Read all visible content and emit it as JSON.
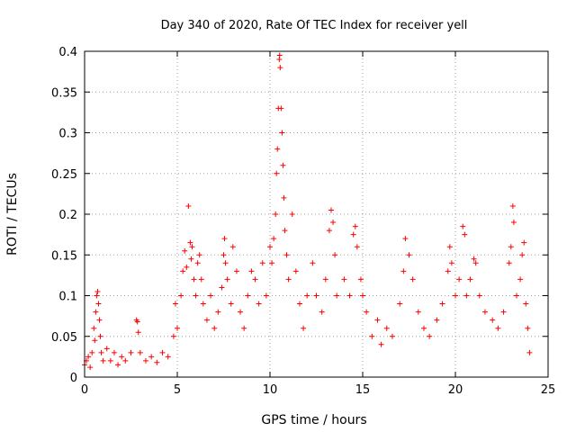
{
  "chart_data": {
    "type": "scatter",
    "title": "Day 340 of 2020, Rate Of TEC Index for receiver yell",
    "xlabel": "GPS time / hours",
    "ylabel": "ROTI / TECUs",
    "xlim": [
      0,
      25
    ],
    "ylim": [
      0,
      0.4
    ],
    "xticks": [
      0,
      5,
      10,
      15,
      20,
      25
    ],
    "yticks": [
      0,
      0.05,
      0.1,
      0.15,
      0.2,
      0.25,
      0.3,
      0.35,
      0.4
    ],
    "xtick_labels": [
      "0",
      "5",
      "10",
      "15",
      "20",
      "25"
    ],
    "ytick_labels": [
      "0",
      "0.05",
      "0.1",
      "0.15",
      "0.2",
      "0.25",
      "0.3",
      "0.35",
      "0.4"
    ],
    "grid": true,
    "marker": "+",
    "color": "#ff0000",
    "series": [
      {
        "name": "ROTI",
        "points": [
          [
            0.0,
            0.015
          ],
          [
            0.1,
            0.02
          ],
          [
            0.2,
            0.025
          ],
          [
            0.3,
            0.012
          ],
          [
            0.4,
            0.03
          ],
          [
            0.5,
            0.06
          ],
          [
            0.55,
            0.045
          ],
          [
            0.6,
            0.08
          ],
          [
            0.65,
            0.1
          ],
          [
            0.7,
            0.105
          ],
          [
            0.75,
            0.09
          ],
          [
            0.8,
            0.07
          ],
          [
            0.85,
            0.05
          ],
          [
            0.9,
            0.03
          ],
          [
            1.0,
            0.02
          ],
          [
            1.2,
            0.035
          ],
          [
            1.4,
            0.02
          ],
          [
            1.6,
            0.03
          ],
          [
            1.8,
            0.015
          ],
          [
            2.0,
            0.025
          ],
          [
            2.2,
            0.02
          ],
          [
            2.5,
            0.03
          ],
          [
            2.8,
            0.07
          ],
          [
            2.85,
            0.068
          ],
          [
            2.9,
            0.055
          ],
          [
            3.0,
            0.03
          ],
          [
            3.3,
            0.02
          ],
          [
            3.6,
            0.025
          ],
          [
            3.9,
            0.018
          ],
          [
            4.2,
            0.03
          ],
          [
            4.5,
            0.025
          ],
          [
            4.8,
            0.05
          ],
          [
            4.9,
            0.09
          ],
          [
            5.0,
            0.06
          ],
          [
            5.2,
            0.1
          ],
          [
            5.3,
            0.13
          ],
          [
            5.4,
            0.155
          ],
          [
            5.5,
            0.135
          ],
          [
            5.6,
            0.21
          ],
          [
            5.7,
            0.165
          ],
          [
            5.75,
            0.145
          ],
          [
            5.8,
            0.16
          ],
          [
            5.9,
            0.12
          ],
          [
            6.0,
            0.1
          ],
          [
            6.1,
            0.14
          ],
          [
            6.2,
            0.15
          ],
          [
            6.3,
            0.12
          ],
          [
            6.4,
            0.09
          ],
          [
            6.6,
            0.07
          ],
          [
            6.8,
            0.1
          ],
          [
            7.0,
            0.06
          ],
          [
            7.2,
            0.08
          ],
          [
            7.4,
            0.11
          ],
          [
            7.5,
            0.15
          ],
          [
            7.55,
            0.17
          ],
          [
            7.6,
            0.14
          ],
          [
            7.7,
            0.12
          ],
          [
            7.9,
            0.09
          ],
          [
            8.0,
            0.16
          ],
          [
            8.2,
            0.13
          ],
          [
            8.4,
            0.08
          ],
          [
            8.6,
            0.06
          ],
          [
            8.8,
            0.1
          ],
          [
            9.0,
            0.13
          ],
          [
            9.2,
            0.12
          ],
          [
            9.4,
            0.09
          ],
          [
            9.6,
            0.14
          ],
          [
            9.8,
            0.1
          ],
          [
            10.0,
            0.16
          ],
          [
            10.1,
            0.14
          ],
          [
            10.2,
            0.17
          ],
          [
            10.3,
            0.2
          ],
          [
            10.35,
            0.25
          ],
          [
            10.4,
            0.28
          ],
          [
            10.45,
            0.33
          ],
          [
            10.5,
            0.39
          ],
          [
            10.52,
            0.395
          ],
          [
            10.55,
            0.38
          ],
          [
            10.6,
            0.33
          ],
          [
            10.65,
            0.3
          ],
          [
            10.7,
            0.26
          ],
          [
            10.75,
            0.22
          ],
          [
            10.8,
            0.18
          ],
          [
            10.9,
            0.15
          ],
          [
            11.0,
            0.12
          ],
          [
            11.2,
            0.2
          ],
          [
            11.4,
            0.13
          ],
          [
            11.6,
            0.09
          ],
          [
            11.8,
            0.06
          ],
          [
            12.0,
            0.1
          ],
          [
            12.3,
            0.14
          ],
          [
            12.5,
            0.1
          ],
          [
            12.8,
            0.08
          ],
          [
            13.0,
            0.12
          ],
          [
            13.2,
            0.18
          ],
          [
            13.3,
            0.205
          ],
          [
            13.4,
            0.19
          ],
          [
            13.5,
            0.15
          ],
          [
            13.6,
            0.1
          ],
          [
            14.0,
            0.12
          ],
          [
            14.3,
            0.1
          ],
          [
            14.5,
            0.175
          ],
          [
            14.6,
            0.185
          ],
          [
            14.7,
            0.16
          ],
          [
            14.9,
            0.12
          ],
          [
            15.0,
            0.1
          ],
          [
            15.2,
            0.08
          ],
          [
            15.5,
            0.05
          ],
          [
            15.8,
            0.07
          ],
          [
            16.0,
            0.04
          ],
          [
            16.3,
            0.06
          ],
          [
            16.6,
            0.05
          ],
          [
            17.0,
            0.09
          ],
          [
            17.2,
            0.13
          ],
          [
            17.3,
            0.17
          ],
          [
            17.5,
            0.15
          ],
          [
            17.7,
            0.12
          ],
          [
            18.0,
            0.08
          ],
          [
            18.3,
            0.06
          ],
          [
            18.6,
            0.05
          ],
          [
            19.0,
            0.07
          ],
          [
            19.3,
            0.09
          ],
          [
            19.6,
            0.13
          ],
          [
            19.7,
            0.16
          ],
          [
            19.8,
            0.14
          ],
          [
            20.0,
            0.1
          ],
          [
            20.2,
            0.12
          ],
          [
            20.4,
            0.185
          ],
          [
            20.5,
            0.175
          ],
          [
            20.6,
            0.1
          ],
          [
            20.8,
            0.12
          ],
          [
            21.0,
            0.145
          ],
          [
            21.1,
            0.14
          ],
          [
            21.3,
            0.1
          ],
          [
            21.6,
            0.08
          ],
          [
            22.0,
            0.07
          ],
          [
            22.3,
            0.06
          ],
          [
            22.6,
            0.08
          ],
          [
            22.9,
            0.14
          ],
          [
            23.0,
            0.16
          ],
          [
            23.1,
            0.21
          ],
          [
            23.15,
            0.19
          ],
          [
            23.3,
            0.1
          ],
          [
            23.5,
            0.12
          ],
          [
            23.6,
            0.15
          ],
          [
            23.7,
            0.165
          ],
          [
            23.8,
            0.09
          ],
          [
            23.9,
            0.06
          ],
          [
            24.0,
            0.03
          ]
        ]
      }
    ]
  }
}
